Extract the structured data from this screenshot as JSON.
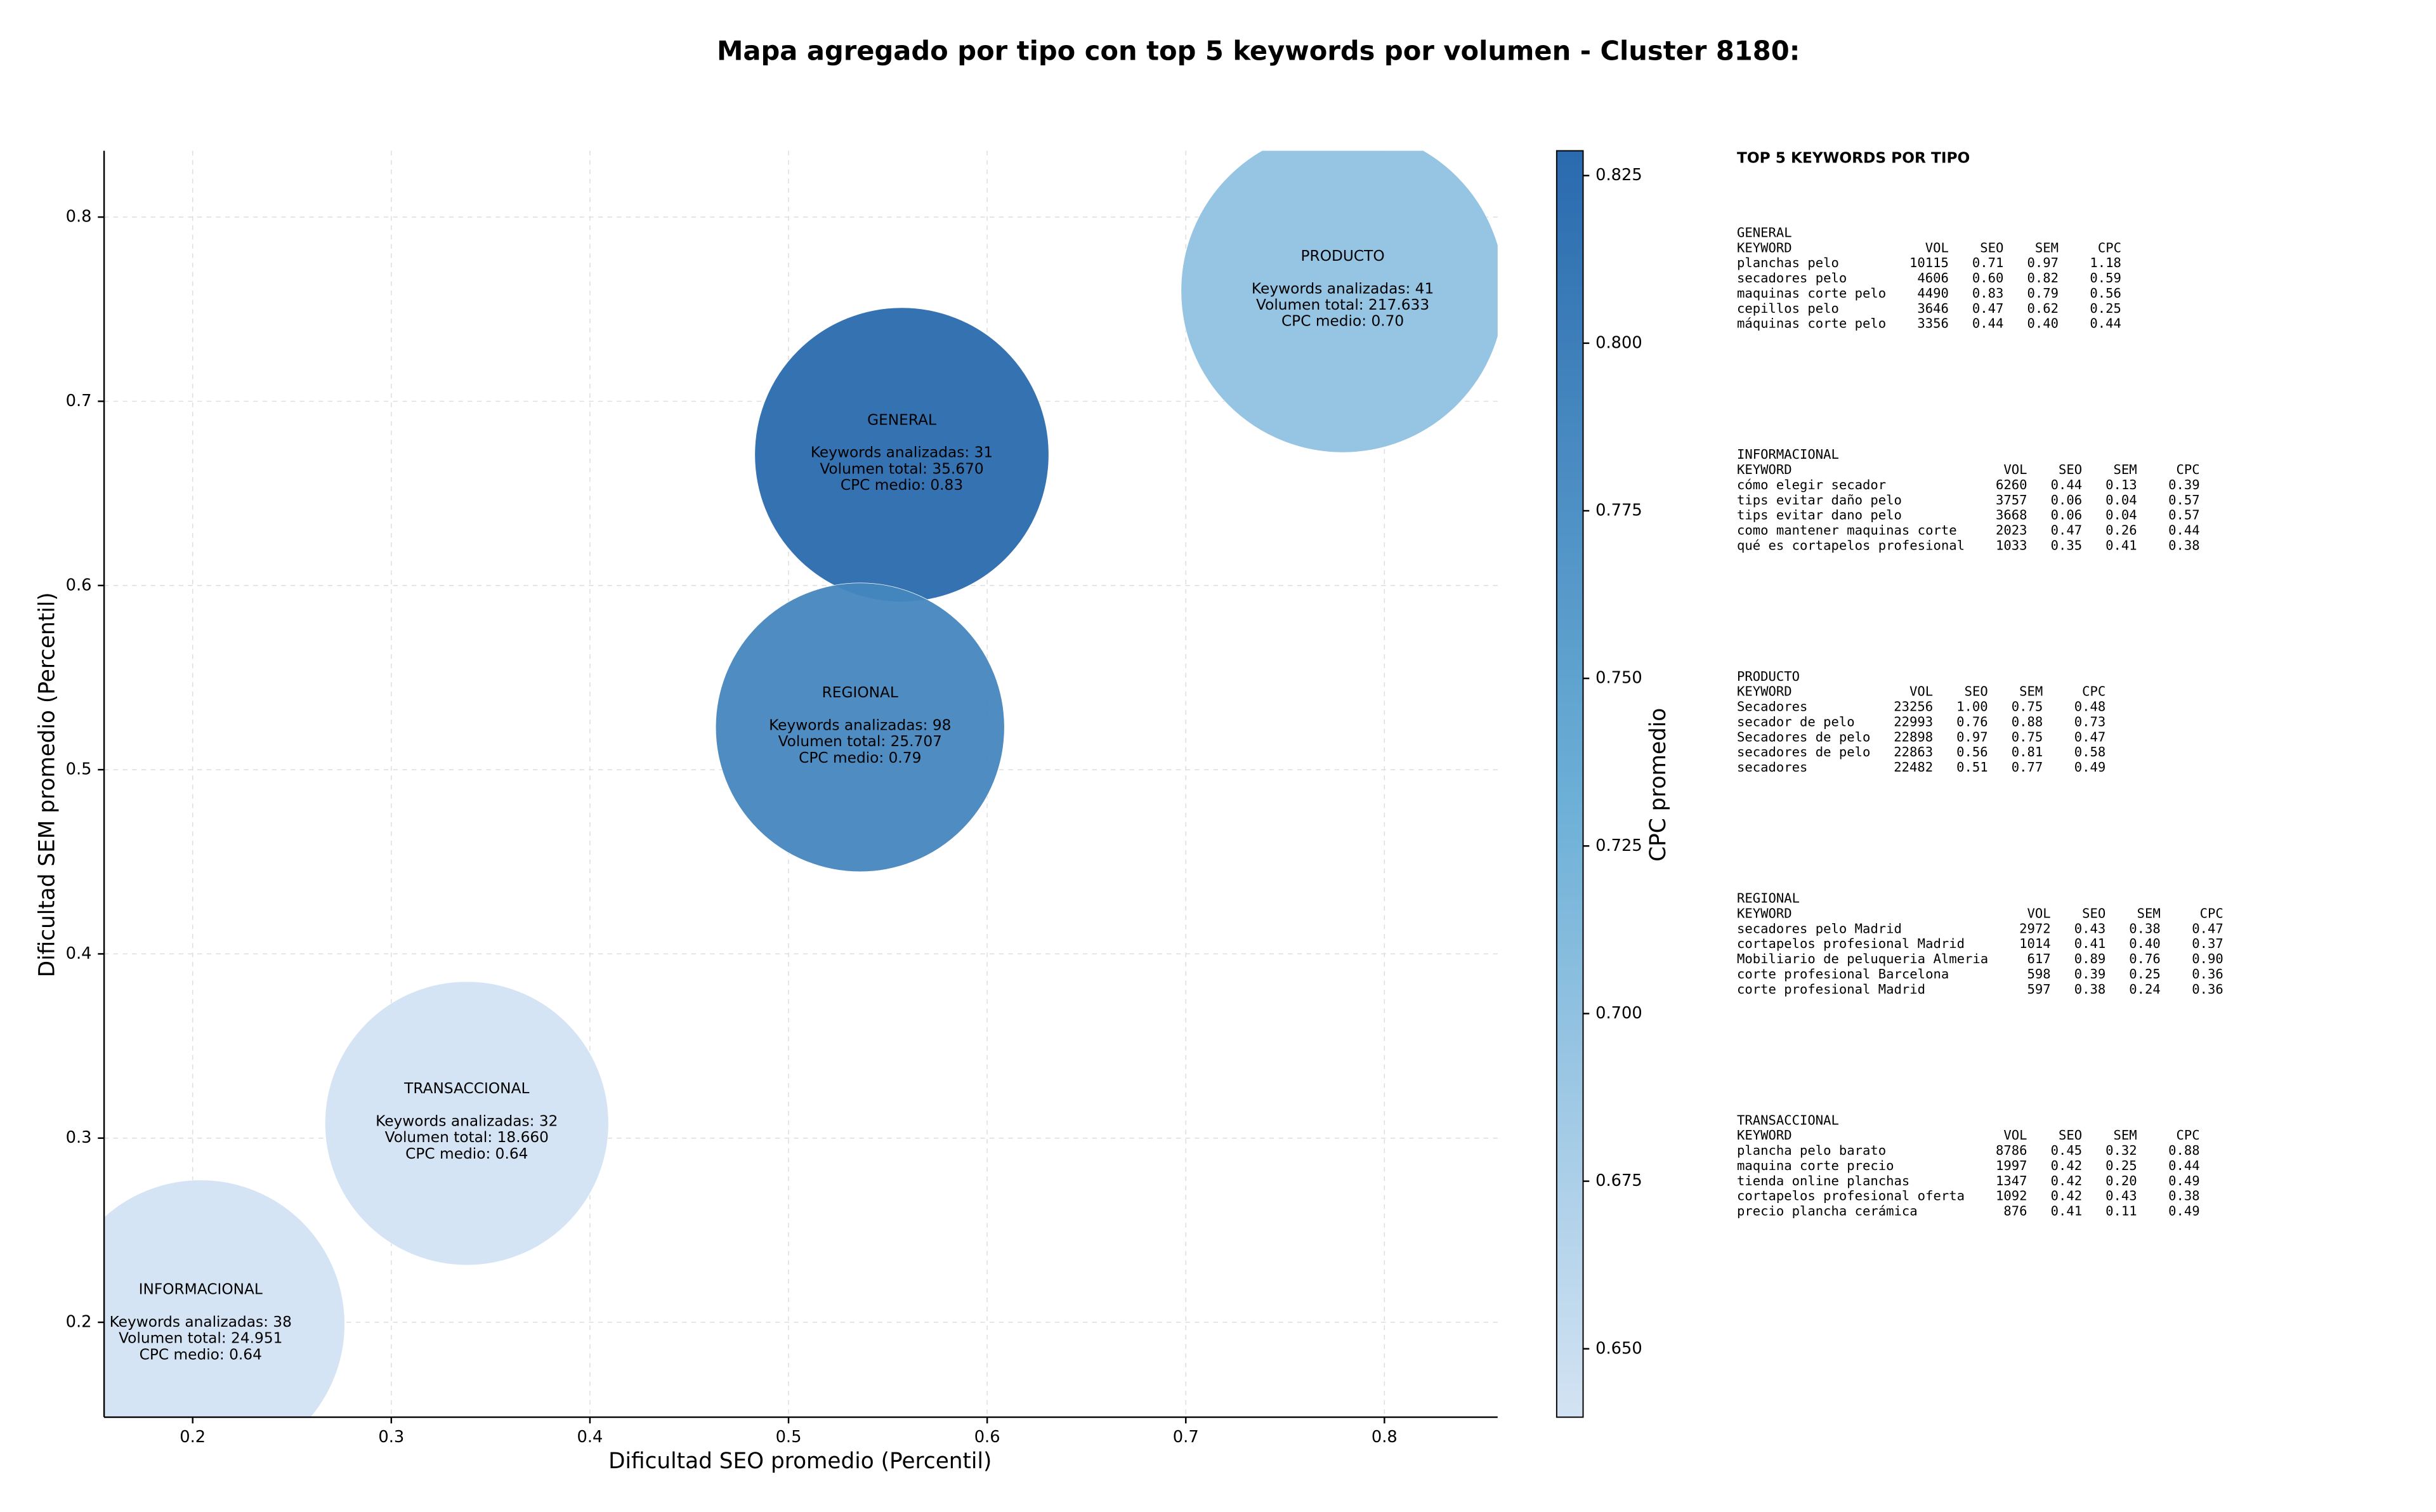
{
  "chart_data": {
    "type": "bubble",
    "title": "Mapa agregado por tipo con top 5 keywords por volumen - Cluster 8180:",
    "x_label": "Dificultad SEO promedio (Percentil)",
    "y_label": "Dificultad SEM promedio (Percentil)",
    "xlim": [
      0.1554,
      0.857
    ],
    "ylim": [
      0.1485,
      0.836
    ],
    "xticks": [
      0.2,
      0.3,
      0.4,
      0.5,
      0.6,
      0.7,
      0.8
    ],
    "yticks": [
      0.2,
      0.3,
      0.4,
      0.5,
      0.6,
      0.7,
      0.8
    ],
    "grid": true,
    "colorbar": {
      "label": "CPC promedio",
      "lim": [
        0.6398,
        0.8287
      ],
      "colors": [
        "#d3e3f3",
        "#6aaed6",
        "#2a6aae"
      ],
      "ticks": [
        {
          "value": 0.65,
          "label": "0.650"
        },
        0.675,
        {
          "value": 0.7,
          "label": "0.700"
        },
        0.725,
        {
          "value": 0.75,
          "label": "0.750"
        },
        0.775,
        {
          "value": 0.8,
          "label": "0.800"
        },
        0.825
      ]
    },
    "series": [
      {
        "name": "GENERAL",
        "x": 0.557,
        "y": 0.671,
        "volume": 35670,
        "cpc": 0.83,
        "lines": [
          "Keywords analizadas: 31",
          "Volumen total: 35.670",
          "CPC medio: 0.83"
        ]
      },
      {
        "name": "INFORMACIONAL",
        "x": 0.204,
        "y": 0.199,
        "volume": 24951,
        "cpc": 0.64,
        "lines": [
          "Keywords analizadas: 38",
          "Volumen total: 24.951",
          "CPC medio: 0.64"
        ]
      },
      {
        "name": "PRODUCTO",
        "x": 0.779,
        "y": 0.76,
        "volume": 217633,
        "cpc": 0.7,
        "lines": [
          "Keywords analizadas: 41",
          "Volumen total: 217.633",
          "CPC medio: 0.70"
        ]
      },
      {
        "name": "REGIONAL",
        "x": 0.536,
        "y": 0.523,
        "volume": 25707,
        "cpc": 0.79,
        "lines": [
          "Keywords analizadas: 98",
          "Volumen total: 25.707",
          "CPC medio: 0.79"
        ]
      },
      {
        "name": "TRANSACCIONAL",
        "x": 0.338,
        "y": 0.308,
        "volume": 18660,
        "cpc": 0.64,
        "lines": [
          "Keywords analizadas: 32",
          "Volumen total: 18.660",
          "CPC medio: 0.64"
        ]
      }
    ],
    "panel": {
      "title": "TOP 5 KEYWORDS POR TIPO",
      "header": [
        "KEYWORD",
        "VOL",
        "SEO",
        "SEM",
        "CPC"
      ],
      "sections": [
        {
          "title": "GENERAL",
          "rows": [
            [
              "planchas pelo",
              "10115",
              "0.71",
              "0.97",
              "1.18"
            ],
            [
              "secadores pelo",
              "4606",
              "0.60",
              "0.82",
              "0.59"
            ],
            [
              "maquinas corte pelo",
              "4490",
              "0.83",
              "0.79",
              "0.56"
            ],
            [
              "cepillos pelo",
              "3646",
              "0.47",
              "0.62",
              "0.25"
            ],
            [
              "máquinas corte pelo",
              "3356",
              "0.44",
              "0.40",
              "0.44"
            ]
          ]
        },
        {
          "title": "INFORMACIONAL",
          "rows": [
            [
              "cómo elegir secador",
              "6260",
              "0.44",
              "0.13",
              "0.39"
            ],
            [
              "tips evitar daño pelo",
              "3757",
              "0.06",
              "0.04",
              "0.57"
            ],
            [
              "tips evitar dano pelo",
              "3668",
              "0.06",
              "0.04",
              "0.57"
            ],
            [
              "como mantener maquinas corte",
              "2023",
              "0.47",
              "0.26",
              "0.44"
            ],
            [
              "qué es cortapelos profesional",
              "1033",
              "0.35",
              "0.41",
              "0.38"
            ]
          ]
        },
        {
          "title": "PRODUCTO",
          "rows": [
            [
              "Secadores",
              "23256",
              "1.00",
              "0.75",
              "0.48"
            ],
            [
              "secador de pelo",
              "22993",
              "0.76",
              "0.88",
              "0.73"
            ],
            [
              "Secadores de pelo",
              "22898",
              "0.97",
              "0.75",
              "0.47"
            ],
            [
              "secadores de pelo",
              "22863",
              "0.56",
              "0.81",
              "0.58"
            ],
            [
              "secadores",
              "22482",
              "0.51",
              "0.77",
              "0.49"
            ]
          ]
        },
        {
          "title": "REGIONAL",
          "rows": [
            [
              "secadores pelo Madrid",
              "2972",
              "0.43",
              "0.38",
              "0.47"
            ],
            [
              "cortapelos profesional Madrid",
              "1014",
              "0.41",
              "0.40",
              "0.37"
            ],
            [
              "Mobiliario de peluqueria Almeria",
              "617",
              "0.89",
              "0.76",
              "0.90"
            ],
            [
              "corte profesional Barcelona",
              "598",
              "0.39",
              "0.25",
              "0.36"
            ],
            [
              "corte profesional Madrid",
              "597",
              "0.38",
              "0.24",
              "0.36"
            ]
          ]
        },
        {
          "title": "TRANSACCIONAL",
          "rows": [
            [
              "plancha pelo barato",
              "8786",
              "0.45",
              "0.32",
              "0.88"
            ],
            [
              "maquina corte precio",
              "1997",
              "0.42",
              "0.25",
              "0.44"
            ],
            [
              "tienda online planchas",
              "1347",
              "0.42",
              "0.20",
              "0.49"
            ],
            [
              "cortapelos profesional oferta",
              "1092",
              "0.42",
              "0.43",
              "0.38"
            ],
            [
              "precio plancha cerámica",
              "876",
              "0.41",
              "0.11",
              "0.49"
            ]
          ]
        }
      ]
    }
  }
}
